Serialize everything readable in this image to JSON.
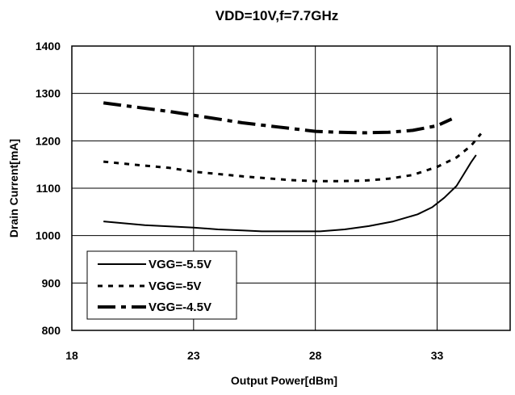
{
  "chart_data": {
    "type": "line",
    "title": "VDD=10V,f=7.7GHz",
    "xlabel": "Output Power[dBm]",
    "ylabel": "Drain Current[mA]",
    "xlim": [
      18,
      36
    ],
    "ylim": [
      800,
      1400
    ],
    "xticks": [
      18,
      23,
      28,
      33
    ],
    "yticks": [
      800,
      900,
      1000,
      1100,
      1200,
      1300,
      1400
    ],
    "grid": true,
    "legend_position": "bottom-left",
    "series": [
      {
        "name": "VGG=-5.5V",
        "style": "solid",
        "x": [
          19.3,
          21,
          23,
          24,
          25,
          25.8,
          27,
          28.2,
          29.2,
          30.2,
          31.2,
          32.2,
          32.8,
          33.3,
          33.8,
          34.1,
          34.4,
          34.6
        ],
        "y": [
          1030,
          1022,
          1017,
          1013,
          1011,
          1009,
          1009,
          1009,
          1013,
          1020,
          1030,
          1045,
          1060,
          1080,
          1105,
          1130,
          1155,
          1170
        ]
      },
      {
        "name": "VGG=-5V",
        "style": "dotted",
        "x": [
          19.3,
          20.5,
          22,
          23,
          24,
          25,
          26,
          27,
          28,
          29,
          30,
          31,
          32,
          33,
          33.8,
          34.4,
          34.8
        ],
        "y": [
          1156,
          1150,
          1143,
          1135,
          1130,
          1125,
          1121,
          1117,
          1115,
          1115,
          1116,
          1120,
          1128,
          1145,
          1165,
          1190,
          1215
        ]
      },
      {
        "name": "VGG=-4.5V",
        "style": "dashed",
        "x": [
          19.3,
          20.5,
          22,
          23.5,
          25,
          26.5,
          28,
          29,
          30,
          31,
          32,
          33,
          33.6
        ],
        "y": [
          1280,
          1272,
          1262,
          1250,
          1238,
          1229,
          1220,
          1218,
          1217,
          1218,
          1222,
          1232,
          1246
        ]
      }
    ]
  }
}
